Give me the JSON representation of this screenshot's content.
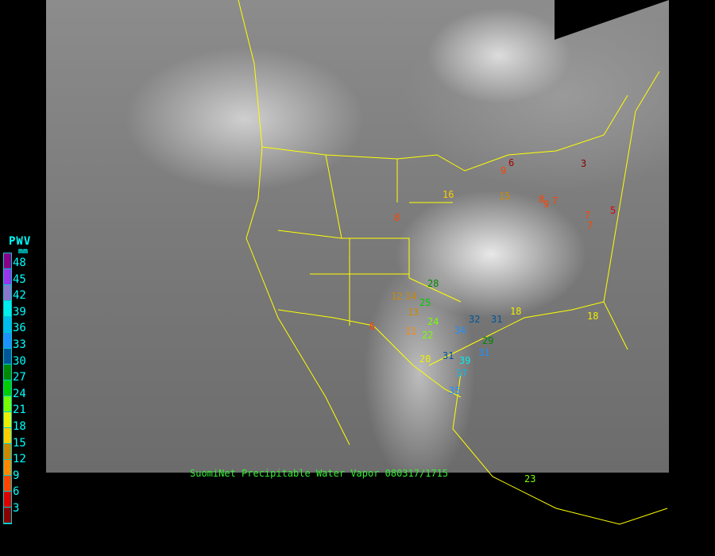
{
  "title": "SuomiNet Precipitable Water Vapor 080317/1715",
  "legend": {
    "title": "PWV",
    "unit": "mm",
    "ticks": [
      "48",
      "45",
      "42",
      "39",
      "36",
      "33",
      "30",
      "27",
      "24",
      "21",
      "18",
      "15",
      "12",
      "9",
      "6",
      "3"
    ],
    "colors": [
      "#880088",
      "#9933ee",
      "#8877cc",
      "#00eeee",
      "#00bbee",
      "#1e90ff",
      "#005599",
      "#008800",
      "#00cc00",
      "#77ff00",
      "#eeee00",
      "#ffcc00",
      "#cc8800",
      "#ff8800",
      "#ff4400",
      "#dd0000",
      "#880000"
    ]
  },
  "stations": [
    {
      "value": "6",
      "color": "#aa0000"
    },
    {
      "value": "9",
      "color": "#ff4400"
    },
    {
      "value": "3",
      "color": "#880000"
    },
    {
      "value": "16",
      "color": "#ffcc00"
    },
    {
      "value": "15",
      "color": "#cc8800"
    },
    {
      "value": "8",
      "color": "#ff4400"
    },
    {
      "value": "8",
      "color": "#ff4400"
    },
    {
      "value": "9",
      "color": "#ff4400"
    },
    {
      "value": "7",
      "color": "#ff4400"
    },
    {
      "value": "5",
      "color": "#dd0000"
    },
    {
      "value": "7",
      "color": "#ff4400"
    },
    {
      "value": "7",
      "color": "#ff4400"
    },
    {
      "value": "28",
      "color": "#008800"
    },
    {
      "value": "12",
      "color": "#cc8800"
    },
    {
      "value": "14",
      "color": "#cc8800"
    },
    {
      "value": "25",
      "color": "#00cc00"
    },
    {
      "value": "13",
      "color": "#cc8800"
    },
    {
      "value": "6",
      "color": "#ff4400"
    },
    {
      "value": "24",
      "color": "#77ff00"
    },
    {
      "value": "11",
      "color": "#ff8800"
    },
    {
      "value": "22",
      "color": "#77ff00"
    },
    {
      "value": "32",
      "color": "#005599"
    },
    {
      "value": "31",
      "color": "#005599"
    },
    {
      "value": "34",
      "color": "#1e90ff"
    },
    {
      "value": "18",
      "color": "#eeee00"
    },
    {
      "value": "29",
      "color": "#008800"
    },
    {
      "value": "31",
      "color": "#1e90ff"
    },
    {
      "value": "31",
      "color": "#005599"
    },
    {
      "value": "20",
      "color": "#eeee00"
    },
    {
      "value": "39",
      "color": "#00eeee"
    },
    {
      "value": "37",
      "color": "#00bbee"
    },
    {
      "value": "35",
      "color": "#1e90ff"
    },
    {
      "value": "18",
      "color": "#eeee00"
    },
    {
      "value": "23",
      "color": "#77ff00"
    }
  ]
}
